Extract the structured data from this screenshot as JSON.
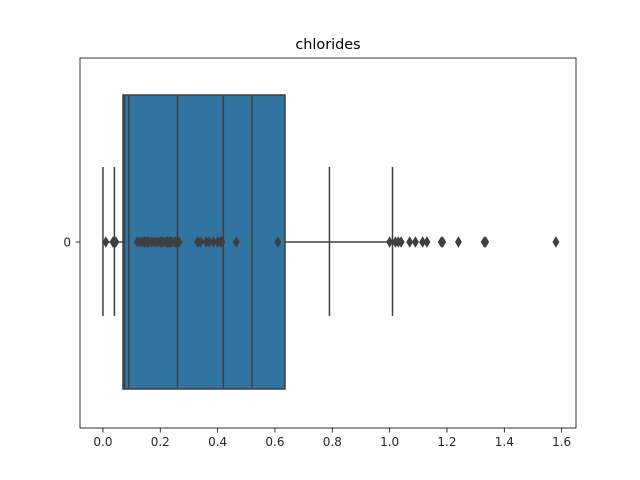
{
  "chart_data": {
    "type": "boxplot",
    "title": "chlorides",
    "xlabel": "",
    "ylabel": "",
    "xlim": [
      -0.08,
      1.65
    ],
    "x_ticks": [
      0.0,
      0.2,
      0.4,
      0.6,
      0.8,
      1.0,
      1.2,
      1.4,
      1.6
    ],
    "x_tick_labels": [
      "0.0",
      "0.2",
      "0.4",
      "0.6",
      "0.8",
      "1.0",
      "1.2",
      "1.4",
      "1.6"
    ],
    "categories": [
      "0"
    ],
    "grid": false,
    "box_color": "#3274a1",
    "line_color": "#3f3f3f",
    "box": {
      "q1": 0.07,
      "q3": 0.635
    },
    "inner_lines": [
      0.075,
      0.09,
      0.26,
      0.42,
      0.52
    ],
    "vertical_lines": [
      0.0,
      0.04,
      0.12,
      0.79,
      1.01
    ],
    "whisker_left": 0.0,
    "whisker_right": 1.01,
    "fliers": [
      0.01,
      0.035,
      0.04,
      0.045,
      0.12,
      0.13,
      0.14,
      0.145,
      0.15,
      0.155,
      0.16,
      0.17,
      0.18,
      0.19,
      0.2,
      0.205,
      0.21,
      0.22,
      0.225,
      0.23,
      0.235,
      0.24,
      0.25,
      0.255,
      0.265,
      0.33,
      0.34,
      0.36,
      0.37,
      0.385,
      0.4,
      0.41,
      0.415,
      0.465,
      0.61,
      1.0,
      1.02,
      1.03,
      1.04,
      1.07,
      1.09,
      1.115,
      1.13,
      1.18,
      1.185,
      1.24,
      1.33,
      1.335,
      1.58
    ]
  }
}
